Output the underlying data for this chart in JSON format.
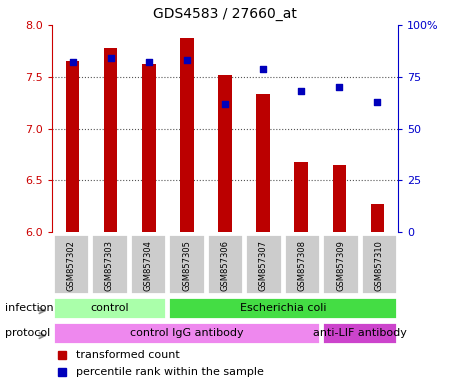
{
  "title": "GDS4583 / 27660_at",
  "samples": [
    "GSM857302",
    "GSM857303",
    "GSM857304",
    "GSM857305",
    "GSM857306",
    "GSM857307",
    "GSM857308",
    "GSM857309",
    "GSM857310"
  ],
  "transformed_count": [
    7.65,
    7.78,
    7.62,
    7.87,
    7.52,
    7.33,
    6.68,
    6.65,
    6.27
  ],
  "percentile_rank": [
    82,
    84,
    82,
    83,
    62,
    79,
    68,
    70,
    63
  ],
  "ylim_left": [
    6.0,
    8.0
  ],
  "ylim_right": [
    0,
    100
  ],
  "yticks_left": [
    6.0,
    6.5,
    7.0,
    7.5,
    8.0
  ],
  "yticks_right": [
    0,
    25,
    50,
    75,
    100
  ],
  "bar_color": "#bb0000",
  "dot_color": "#0000bb",
  "bar_width": 0.35,
  "infection_groups": [
    {
      "label": "control",
      "start": 0,
      "end": 3,
      "color": "#aaffaa"
    },
    {
      "label": "Escherichia coli",
      "start": 3,
      "end": 9,
      "color": "#44dd44"
    }
  ],
  "protocol_groups": [
    {
      "label": "control IgG antibody",
      "start": 0,
      "end": 7,
      "color": "#ee88ee"
    },
    {
      "label": "anti-LIF antibody",
      "start": 7,
      "end": 9,
      "color": "#cc44cc"
    }
  ],
  "legend_red_label": "transformed count",
  "legend_blue_label": "percentile rank within the sample",
  "infection_label": "infection",
  "protocol_label": "protocol",
  "left_tick_color": "#cc0000",
  "right_tick_color": "#0000cc",
  "sample_box_color": "#cccccc",
  "sample_box_edge": "#ffffff",
  "dotted_line_color": "#555555",
  "right_tick_labels": [
    "0",
    "25",
    "50",
    "75",
    "100%"
  ]
}
